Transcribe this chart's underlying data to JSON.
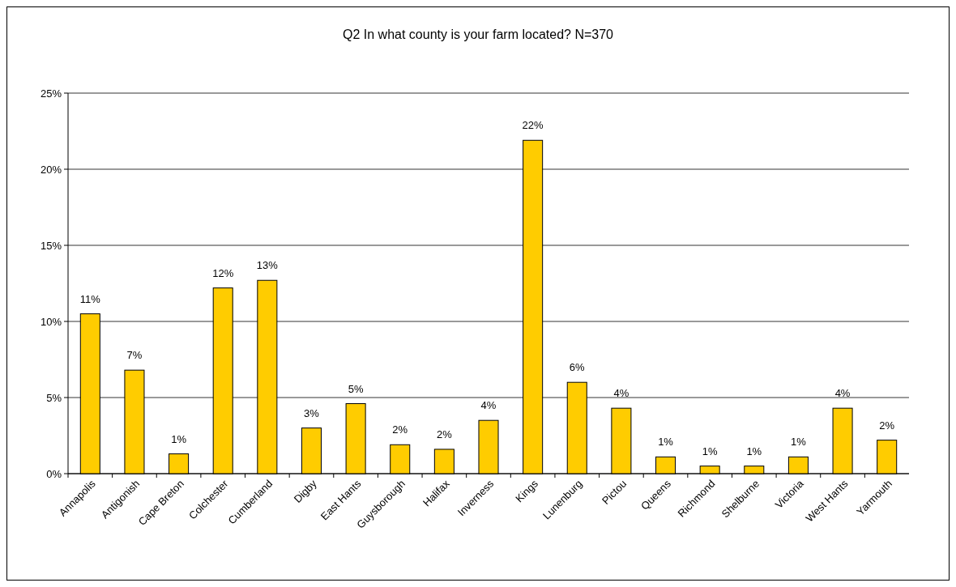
{
  "chart_data": {
    "type": "bar",
    "title": "Q2 In what county is your farm located? N=370",
    "categories": [
      "Annapolis",
      "Antigonish",
      "Cape Breton",
      "Colchester",
      "Cumberland",
      "Digby",
      "East Hants",
      "Guysborough",
      "Halifax",
      "Inverness",
      "Kings",
      "Lunenburg",
      "Pictou",
      "Queens",
      "Richmond",
      "Shelburne",
      "Victoria",
      "West Hants",
      "Yarmouth"
    ],
    "values": [
      10.5,
      6.8,
      1.3,
      12.2,
      12.7,
      3.0,
      4.6,
      1.9,
      1.6,
      3.5,
      21.9,
      6.0,
      4.3,
      1.1,
      0.5,
      0.5,
      1.1,
      4.3,
      2.2
    ],
    "value_labels": [
      "11%",
      "7%",
      "1%",
      "12%",
      "13%",
      "3%",
      "5%",
      "2%",
      "2%",
      "4%",
      "22%",
      "6%",
      "4%",
      "1%",
      "1%",
      "1%",
      "1%",
      "4%",
      "2%"
    ],
    "color": "#ffcc00",
    "ylim": [
      0,
      25
    ],
    "yticks": [
      {
        "value": 0,
        "label": "0%"
      },
      {
        "value": 5,
        "label": "5%"
      },
      {
        "value": 10,
        "label": "10%"
      },
      {
        "value": 15,
        "label": "15%"
      },
      {
        "value": 20,
        "label": "20%"
      },
      {
        "value": 25,
        "label": "25%"
      }
    ],
    "grid": "y"
  }
}
